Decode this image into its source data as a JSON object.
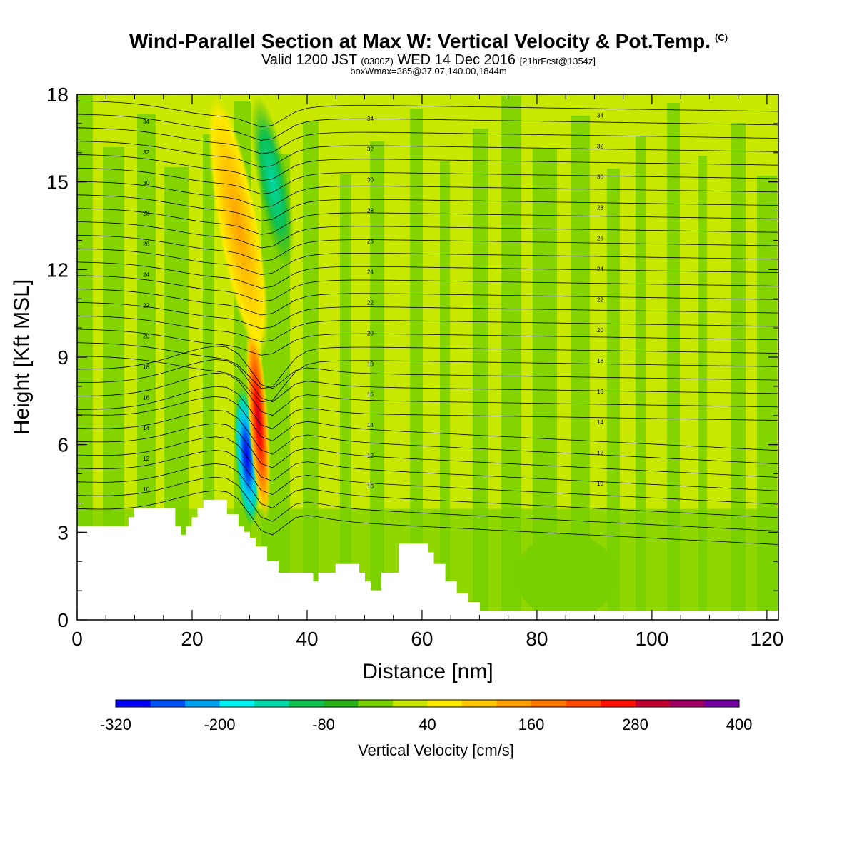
{
  "header": {
    "title": "Wind-Parallel Section at Max W: Vertical Velocity & Pot.Temp.",
    "copyright": "(C)",
    "subtitle_main": "Valid 1200 JST",
    "subtitle_z": "(0300Z)",
    "subtitle_date": "WED 14 Dec 2016",
    "subtitle_fcst": "[21hrFcst@1354z]",
    "boxinfo": "boxWmax=385@37.07,140.00,1844m"
  },
  "chart_data": {
    "type": "heatmap",
    "title": "Wind-Parallel Section at Max W: Vertical Velocity & Pot.Temp.",
    "xlabel": "Distance [nm]",
    "ylabel": "Height [Kft MSL]",
    "xlim": [
      0,
      122
    ],
    "ylim": [
      0,
      18
    ],
    "x_ticks": [
      0,
      20,
      40,
      60,
      80,
      100,
      120
    ],
    "y_ticks": [
      0,
      3,
      6,
      9,
      12,
      15,
      18
    ],
    "colorbar": {
      "label": "Vertical Velocity [cm/s]",
      "tick_labels": [
        "-320",
        "-200",
        "-80",
        "40",
        "160",
        "280",
        "400"
      ],
      "levels": [
        -320,
        -280,
        -240,
        -200,
        -160,
        -120,
        -80,
        -40,
        0,
        40,
        80,
        120,
        160,
        200,
        240,
        280,
        320,
        360,
        400
      ],
      "colors": [
        "#0000f0",
        "#0050f0",
        "#00a0f0",
        "#00f0f0",
        "#00d8a8",
        "#10c050",
        "#28b018",
        "#78d000",
        "#c8e800",
        "#ffeb00",
        "#ffc800",
        "#ffa000",
        "#ff7800",
        "#ff4800",
        "#ff1000",
        "#c00030",
        "#a00060",
        "#7000a0"
      ]
    },
    "terrain_profile": {
      "x": [
        0,
        6,
        9,
        10,
        11,
        16,
        17,
        18,
        19,
        20,
        21,
        22,
        26,
        28,
        29,
        30,
        31,
        33,
        35,
        36,
        37,
        40,
        41,
        42,
        45,
        47,
        49,
        50,
        51,
        53,
        56,
        59,
        61,
        62,
        64,
        66,
        68,
        70,
        122
      ],
      "height": [
        3.2,
        3.2,
        3.5,
        3.8,
        3.8,
        3.8,
        3.2,
        2.9,
        3.2,
        3.5,
        3.8,
        4.1,
        3.6,
        3.2,
        3.0,
        2.8,
        2.5,
        2.0,
        1.6,
        1.6,
        1.6,
        1.6,
        1.3,
        1.6,
        1.9,
        1.9,
        1.6,
        1.3,
        1.0,
        1.6,
        2.6,
        2.6,
        2.3,
        1.9,
        1.3,
        0.9,
        0.6,
        0.3,
        0.3
      ]
    },
    "vertical_velocity_features": [
      {
        "feature": "downdraft core",
        "x_center": 29.5,
        "y_bottom": 3.2,
        "y_top": 8.0,
        "min_w": -320
      },
      {
        "feature": "updraft core",
        "x_center": 31.5,
        "y_bottom": 3.3,
        "y_top": 10.5,
        "max_w": 385
      },
      {
        "feature": "upper updraft band",
        "x_center": 28.0,
        "y_bottom": 9.0,
        "y_top": 18.0,
        "max_w": 160
      },
      {
        "feature": "upper downdraft band",
        "x_center": 34.0,
        "y_bottom": 12.0,
        "y_top": 18.0,
        "min_w": -160
      }
    ],
    "theta_contours": {
      "units": "Pot.Temp.",
      "labels": [
        "10",
        "12",
        "14",
        "16",
        "18",
        "20",
        "22",
        "24",
        "26",
        "28",
        "30",
        "32",
        "34"
      ]
    }
  }
}
